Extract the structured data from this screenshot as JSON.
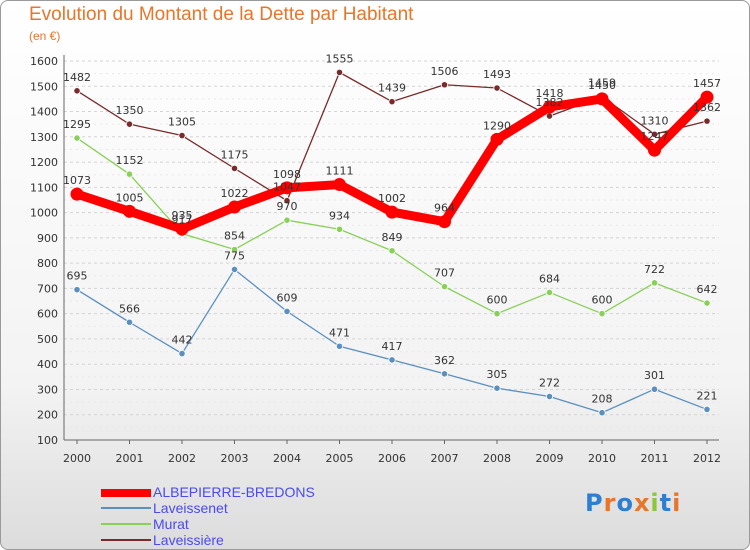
{
  "chart_data": {
    "type": "line",
    "title": "Evolution du Montant de la Dette par Habitant",
    "subtitle": "(en €)",
    "categories": [
      "2000",
      "2001",
      "2002",
      "2003",
      "2004",
      "2005",
      "2006",
      "2007",
      "2008",
      "2009",
      "2010",
      "2011",
      "2012"
    ],
    "ylim": [
      100,
      1600
    ],
    "yticks": [
      100,
      200,
      300,
      400,
      500,
      600,
      700,
      800,
      900,
      1000,
      1100,
      1200,
      1300,
      1400,
      1500,
      1600
    ],
    "grid": "horizontal dashed",
    "legend_position": "bottom-left",
    "series": [
      {
        "name": "ALBEPIERRE-BREDONS",
        "color": "#ff0000",
        "values": [
          1073,
          1005,
          935,
          1022,
          1098,
          1111,
          1002,
          964,
          1290,
          1418,
          1450,
          1247,
          1457
        ]
      },
      {
        "name": "Laveissenet",
        "color": "#5a8fc0",
        "values": [
          695,
          566,
          442,
          775,
          609,
          471,
          417,
          362,
          305,
          272,
          208,
          301,
          221
        ]
      },
      {
        "name": "Murat",
        "color": "#88d058",
        "values": [
          1295,
          1152,
          917,
          854,
          970,
          934,
          849,
          707,
          600,
          684,
          600,
          722,
          642
        ]
      },
      {
        "name": "Laveissière",
        "color": "#7a2a2a",
        "values": [
          1482,
          1350,
          1305,
          1175,
          1047,
          1555,
          1439,
          1506,
          1493,
          1382,
          1459,
          1310,
          1362
        ]
      }
    ]
  },
  "logo": {
    "text": "Proxiti"
  }
}
